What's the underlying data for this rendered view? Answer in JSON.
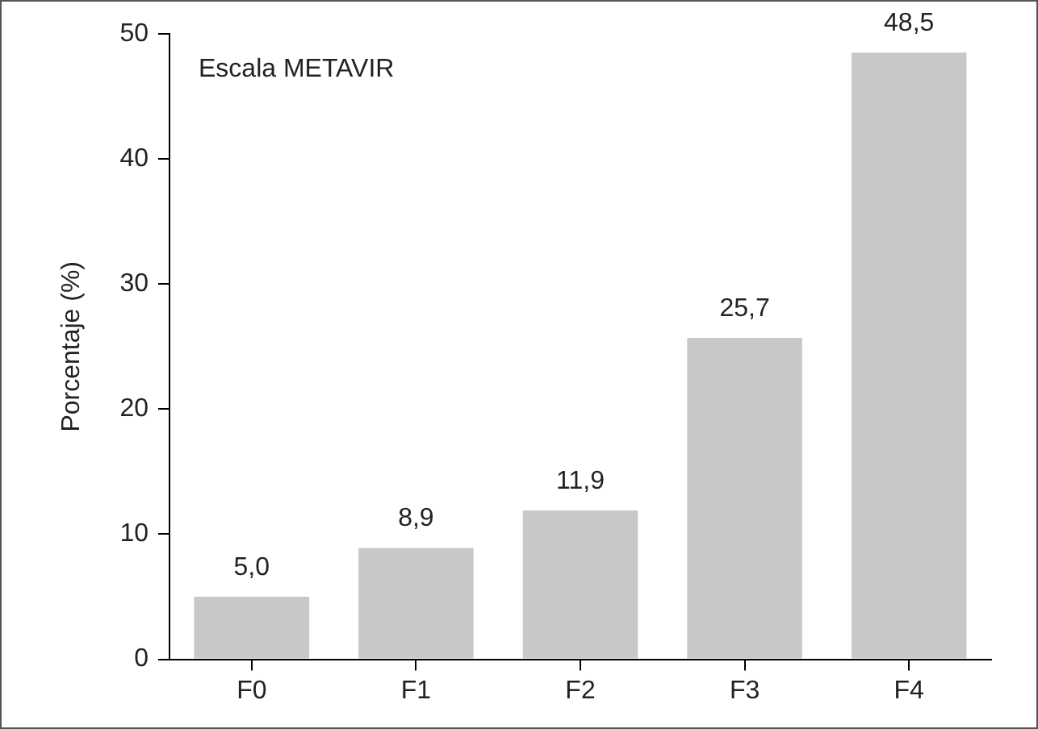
{
  "chart_data": {
    "type": "bar",
    "ylabel": "Porcentaje (%)",
    "categories": [
      "F0",
      "F1",
      "F2",
      "F3",
      "F4"
    ],
    "values": [
      5.0,
      8.9,
      11.9,
      25.7,
      48.5
    ],
    "value_labels": [
      "5,0",
      "8,9",
      "11,9",
      "25,7",
      "48,5"
    ],
    "color": "#c8c8c8",
    "ylim": [
      0,
      50
    ],
    "yticks": [
      0,
      10,
      20,
      30,
      40,
      50
    ],
    "grid": false,
    "annotations": [
      "Escala METAVIR"
    ]
  }
}
